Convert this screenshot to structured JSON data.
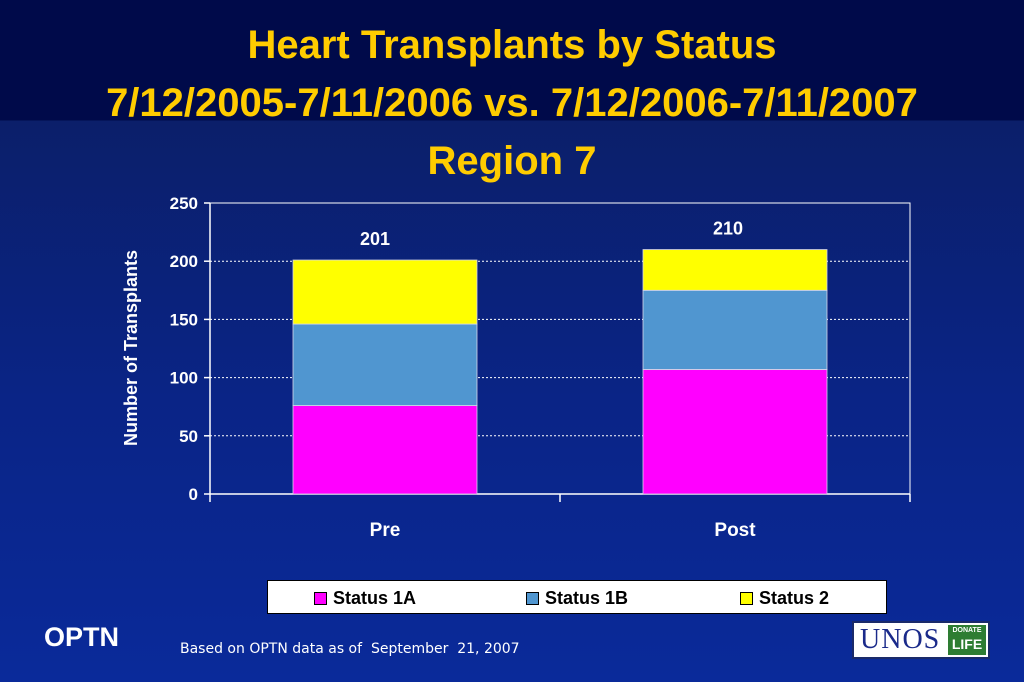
{
  "title": {
    "line1": "Heart Transplants by Status",
    "line2": "7/12/2005-7/11/2006 vs. 7/12/2006-7/11/2007",
    "line3": "Region 7"
  },
  "chart_data": {
    "type": "bar",
    "stacked": true,
    "categories": [
      "Pre",
      "Post"
    ],
    "series": [
      {
        "name": "Status 1A",
        "values": [
          76,
          107
        ],
        "color": "#ff00ff"
      },
      {
        "name": "Status 1B",
        "values": [
          70,
          68
        ],
        "color": "#5096d0"
      },
      {
        "name": "Status 2",
        "values": [
          55,
          35
        ],
        "color": "#ffff00"
      }
    ],
    "totals": [
      201,
      210
    ],
    "total_labels": [
      "201",
      "210"
    ],
    "ylabel": "Number of Transplants",
    "xlabel": "",
    "ylim": [
      0,
      250
    ],
    "yticks": [
      0,
      50,
      100,
      150,
      200,
      250
    ],
    "ytick_labels": [
      "0",
      "50",
      "100",
      "150",
      "200",
      "250"
    ],
    "grid": true,
    "legend_position": "bottom"
  },
  "legend": {
    "items": [
      {
        "label": "Status 1A",
        "color": "#ff00ff"
      },
      {
        "label": "Status 1B",
        "color": "#5096d0"
      },
      {
        "label": "Status 2",
        "color": "#ffff00"
      }
    ]
  },
  "footer": {
    "org": "OPTN",
    "note": "Based on OPTN data as of  September  21, 2007",
    "logo_text": "UNOS",
    "logo_badge_top": "DONATE",
    "logo_badge_bottom": "LIFE"
  }
}
